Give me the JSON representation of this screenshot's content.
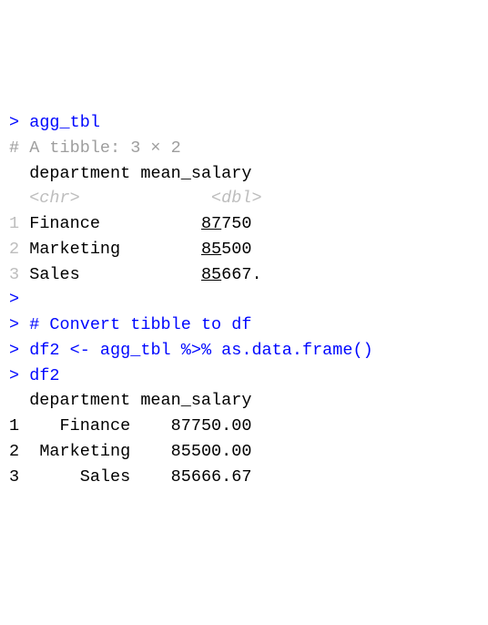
{
  "l1": {
    "prompt": "> ",
    "cmd": "agg_tbl"
  },
  "l2": {
    "text": "# A tibble: 3 × 2"
  },
  "l3": {
    "c1": "  department",
    "c2": " mean_salary"
  },
  "l4": {
    "c1": "  <chr>     ",
    "c2": "        <dbl>"
  },
  "r1": {
    "n": "1",
    "dept": " Finance   ",
    "pad": "       ",
    "u": "87",
    "rest": "750 "
  },
  "r2": {
    "n": "2",
    "dept": " Marketing ",
    "pad": "       ",
    "u": "85",
    "rest": "500 "
  },
  "r3": {
    "n": "3",
    "dept": " Sales     ",
    "pad": "       ",
    "u": "85",
    "rest": "667."
  },
  "l8": {
    "prompt": "> "
  },
  "l9": {
    "prompt": "> ",
    "cmd": "# Convert tibble to df"
  },
  "l10": {
    "prompt": "> ",
    "cmd": "df2 <- agg_tbl %>% as.data.frame()"
  },
  "l11": {
    "prompt": "> ",
    "cmd": "df2"
  },
  "l12": {
    "text": "  department mean_salary"
  },
  "d1": {
    "n": "1",
    "dept": "    Finance",
    "val": "    87750.00"
  },
  "d2": {
    "n": "2",
    "dept": "  Marketing",
    "val": "    85500.00"
  },
  "d3": {
    "n": "3",
    "dept": "      Sales",
    "val": "    85666.67"
  }
}
